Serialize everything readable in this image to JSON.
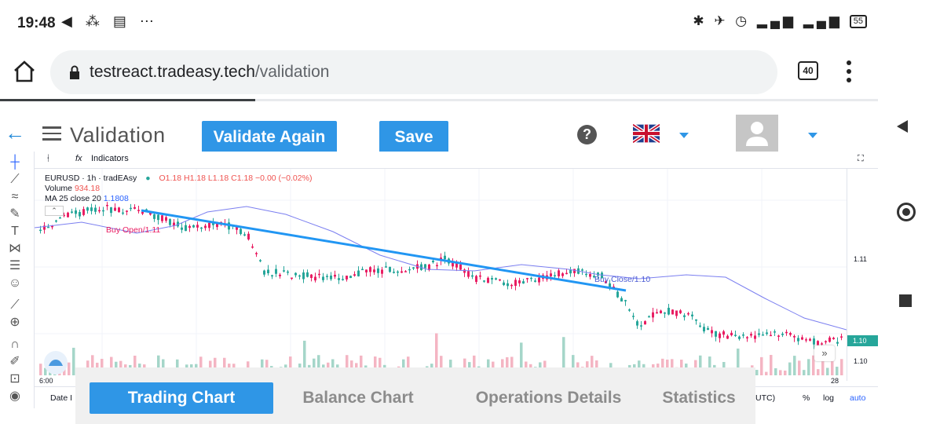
{
  "status_bar": {
    "time": "19:48",
    "left_icons": "◀ ⁂ ▤ ⋯",
    "battery": "55"
  },
  "browser": {
    "url_host": "testreact.tradeasy.tech",
    "url_path": "/validation",
    "tab_count": "40"
  },
  "app_header": {
    "title": "Validation",
    "validate_label": "Validate Again",
    "save_label": "Save",
    "help_label": "?"
  },
  "chart": {
    "toolbar": {
      "interval_icon": "ᛂ",
      "indicators_label": "Indicators"
    },
    "legend": {
      "symbol": "EURUSD · 1h · tradEAsy",
      "ohlc": "O1.18 H1.18 L1.18 C1.18 −0.00 (−0.02%)",
      "volume_label": "Volume",
      "volume_value": "934.18",
      "ma_label": "MA 25 close 20",
      "ma_value": "1.1808"
    },
    "annotations": {
      "buy_open": "Buy Open/1.11",
      "buy_close": "Buy Close/1.10"
    },
    "price_axis": {
      "tick_high": "1.11",
      "tick_low": "1.10",
      "last_price": "1.10"
    },
    "time_axis": {
      "left": "6:00",
      "right": "28"
    },
    "bottom_bar": {
      "date_range": "Date I",
      "timezone": "UTC)",
      "percent": "%",
      "log": "log",
      "auto": "auto"
    },
    "colors": {
      "up": "#26a69a",
      "down": "#e91e63",
      "ma": "#7b7ff0",
      "trend": "#2196f3"
    }
  },
  "tabs": [
    {
      "label": "Trading Chart",
      "active": true
    },
    {
      "label": "Balance Chart",
      "active": false
    },
    {
      "label": "Operations Details",
      "active": false
    },
    {
      "label": "Statistics",
      "active": false
    }
  ]
}
